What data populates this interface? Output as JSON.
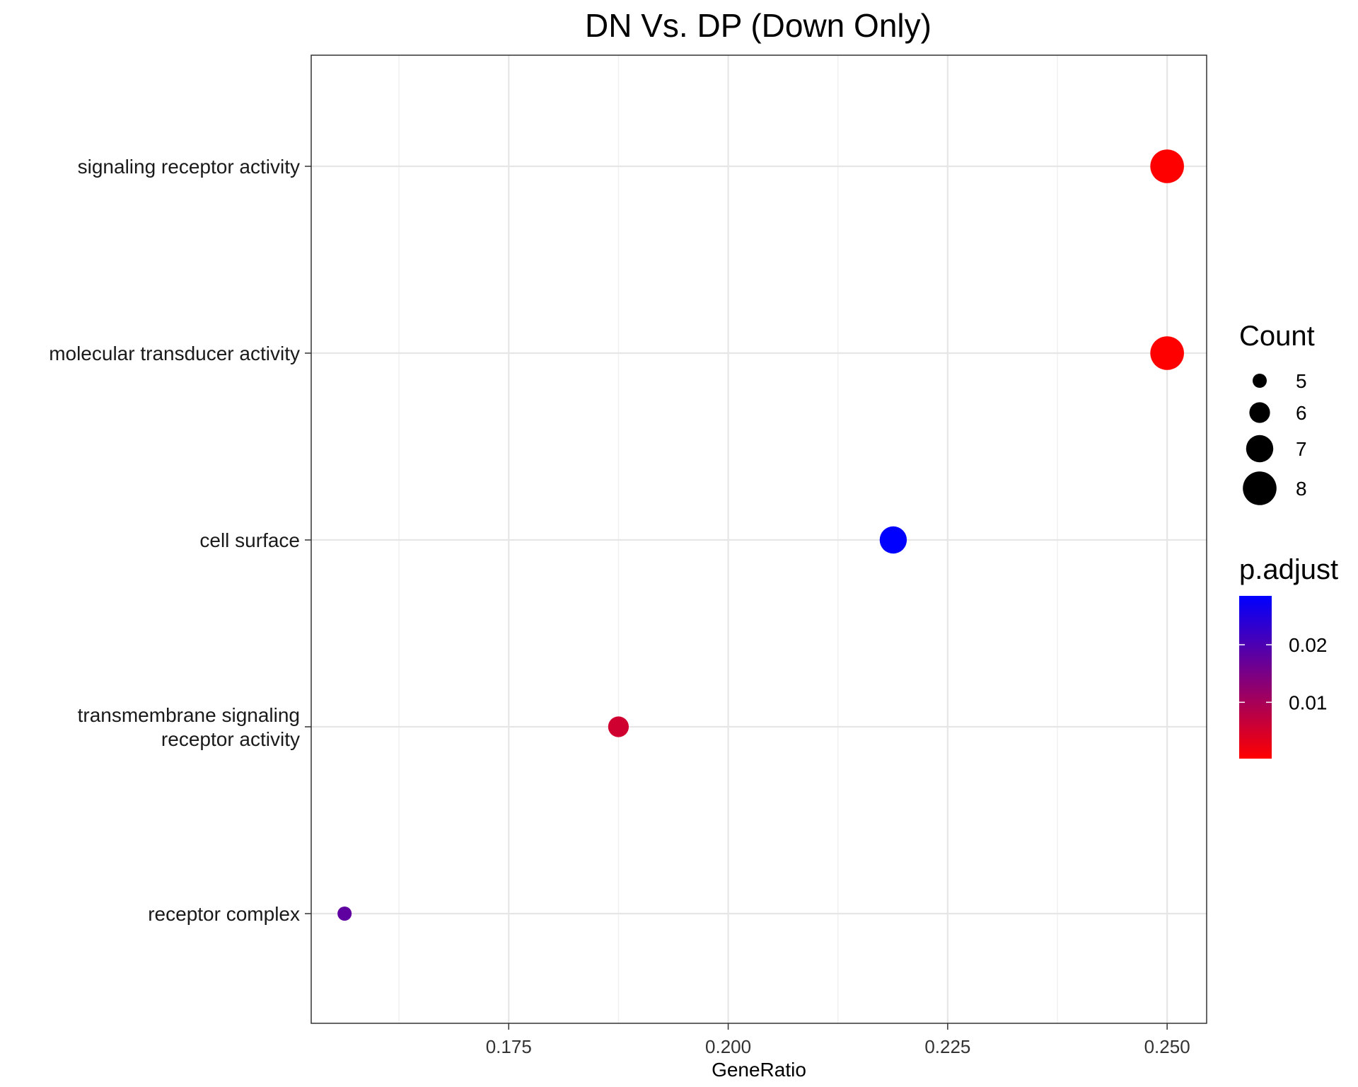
{
  "chart_data": {
    "type": "scatter",
    "title": "DN Vs. DP (Down Only)",
    "xlabel": "GeneRatio",
    "ylabel": "",
    "xlim": [
      0.1525,
      0.2545
    ],
    "x_ticks": [
      "0.175",
      "0.200",
      "0.225",
      "0.250"
    ],
    "x_tick_values": [
      0.175,
      0.2,
      0.225,
      0.25
    ],
    "x_minor_values": [
      0.1625,
      0.1875,
      0.2125,
      0.2375
    ],
    "categories": [
      [
        "signaling receptor activity"
      ],
      [
        "molecular transducer activity"
      ],
      [
        "cell surface"
      ],
      [
        "transmembrane signaling",
        "receptor activity"
      ],
      [
        "receptor complex"
      ]
    ],
    "points": [
      {
        "x": 0.25,
        "y": 0,
        "count": 8,
        "p_adjust": 0.0002
      },
      {
        "x": 0.25,
        "y": 1,
        "count": 8,
        "p_adjust": 0.0002
      },
      {
        "x": 0.2188,
        "y": 2,
        "count": 7,
        "p_adjust": 0.0285
      },
      {
        "x": 0.1875,
        "y": 3,
        "count": 6,
        "p_adjust": 0.0055
      },
      {
        "x": 0.1563,
        "y": 4,
        "count": 5,
        "p_adjust": 0.018
      }
    ],
    "size_legend": {
      "title": "Count",
      "items": [
        {
          "label": "5",
          "count": 5
        },
        {
          "label": "6",
          "count": 6
        },
        {
          "label": "7",
          "count": 7
        },
        {
          "label": "8",
          "count": 8
        }
      ]
    },
    "color_legend": {
      "title": "p.adjust",
      "low_color": "#ff0000",
      "high_color": "#0000ff",
      "range": [
        0.0002,
        0.0285
      ],
      "ticks": [
        {
          "label": "0.02",
          "value": 0.02
        },
        {
          "label": "0.01",
          "value": 0.01
        }
      ]
    },
    "grid": true,
    "legend_position": "right"
  }
}
